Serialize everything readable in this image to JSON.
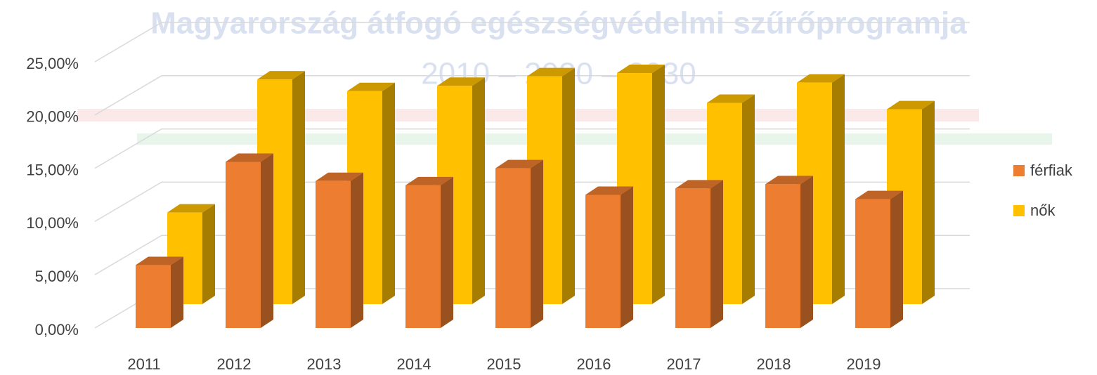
{
  "chart_data": {
    "type": "bar3d",
    "title": "Magyarország átfogó egészségvédelmi szűrőprogramja",
    "subtitle": "2010 – 2020 – 2030",
    "categories": [
      "2011",
      "2012",
      "2013",
      "2014",
      "2015",
      "2016",
      "2017",
      "2018",
      "2019"
    ],
    "series": [
      {
        "name": "férfiak",
        "color": "#ED7D31",
        "values": [
          5.9,
          15.6,
          13.8,
          13.4,
          15.0,
          12.5,
          13.1,
          13.5,
          12.1
        ]
      },
      {
        "name": "nők",
        "color": "#FFC000",
        "values": [
          8.6,
          21.1,
          20.0,
          20.5,
          21.4,
          21.7,
          18.9,
          20.8,
          18.3
        ]
      }
    ],
    "ylim": [
      0,
      25
    ],
    "yticks": [
      {
        "value": 0,
        "label": "0,00%"
      },
      {
        "value": 5,
        "label": "5,00%"
      },
      {
        "value": 10,
        "label": "10,00%"
      },
      {
        "value": 15,
        "label": "15,00%"
      },
      {
        "value": 20,
        "label": "20,00%"
      },
      {
        "value": 25,
        "label": "25,00%"
      }
    ],
    "grid": true,
    "legend": "right"
  }
}
